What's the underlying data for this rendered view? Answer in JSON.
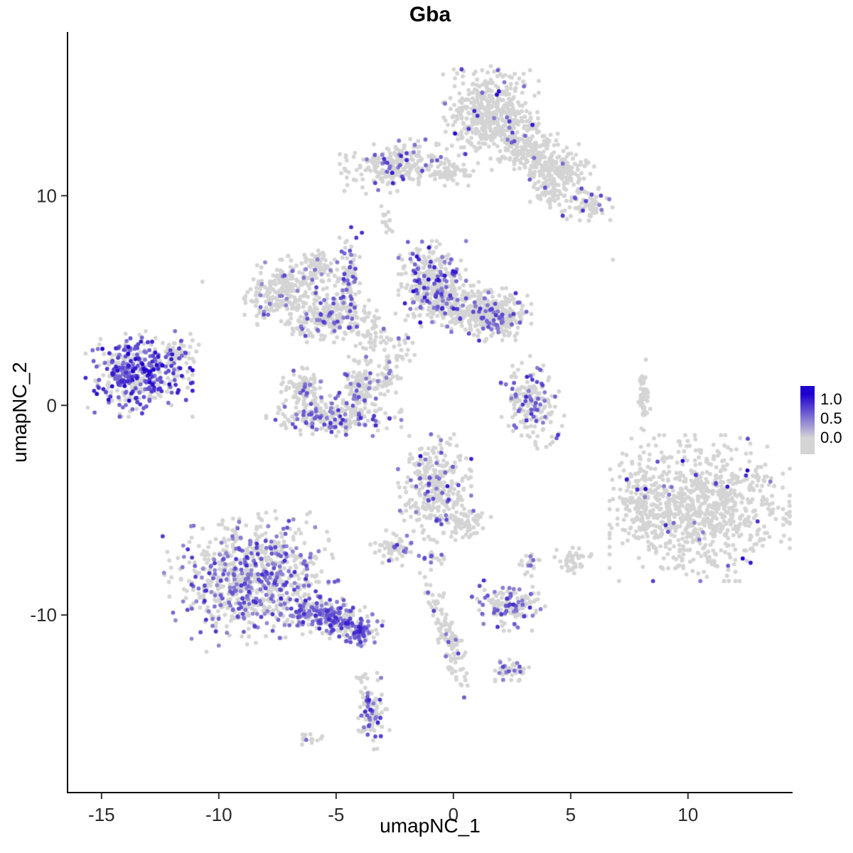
{
  "title": "Gba",
  "xlabel": "umapNC_1",
  "ylabel": "umapNC_2",
  "axes": {
    "xlim": [
      -16.45,
      14.46
    ],
    "ylim": [
      -18.47,
      17.81
    ],
    "x_ticks": [
      {
        "value": -15,
        "label": "-15"
      },
      {
        "value": -10,
        "label": "-10"
      },
      {
        "value": -5,
        "label": "-5"
      },
      {
        "value": 0,
        "label": "0"
      },
      {
        "value": 5,
        "label": "5"
      },
      {
        "value": 10,
        "label": "10"
      }
    ],
    "y_ticks": [
      {
        "value": 10,
        "label": "10"
      },
      {
        "value": 0,
        "label": "0"
      },
      {
        "value": -10,
        "label": "-10"
      }
    ]
  },
  "legend": {
    "labels": [
      "1.0",
      "0.5",
      "0.0"
    ],
    "low_color": "#d4d4d4",
    "high_color": "#1d00cf"
  },
  "chart_data": {
    "type": "scatter",
    "title": "Gba",
    "xlabel": "umapNC_1",
    "ylabel": "umapNC_2",
    "color_scale": {
      "low": "#d4d4d4",
      "high": "#1d00cf",
      "domain": [
        0,
        1
      ]
    },
    "point_radius": 2.9,
    "seed": 42,
    "clusters": [
      {
        "name": "top-main",
        "cx": 1.6,
        "cy": 13.9,
        "sx": 0.85,
        "sy": 0.95,
        "rot": 0,
        "n": 480,
        "frac": 0.04,
        "emin": 0.4,
        "emax": 1.0
      },
      {
        "name": "top-tail-1",
        "cx": 3.2,
        "cy": 12.0,
        "sx": 0.75,
        "sy": 0.6,
        "rot": -0.5,
        "n": 190,
        "frac": 0.02,
        "emin": 0.4,
        "emax": 0.7
      },
      {
        "name": "top-tail-2",
        "cx": 4.6,
        "cy": 11.3,
        "sx": 0.6,
        "sy": 0.55,
        "rot": 0,
        "n": 130,
        "frac": 0.02,
        "emin": 0.4,
        "emax": 0.7
      },
      {
        "name": "top-tail-3",
        "cx": 4.2,
        "cy": 10.2,
        "sx": 0.45,
        "sy": 0.4,
        "rot": 0,
        "n": 60,
        "frac": 0.03,
        "emin": 0.4,
        "emax": 0.7
      },
      {
        "name": "top-right-small",
        "cx": 5.7,
        "cy": 9.5,
        "sx": 0.45,
        "sy": 0.4,
        "rot": 0,
        "n": 70,
        "frac": 0.1,
        "emin": 0.4,
        "emax": 0.75
      },
      {
        "name": "upper-left",
        "cx": -2.4,
        "cy": 11.4,
        "sx": 1.0,
        "sy": 0.5,
        "rot": 0.15,
        "n": 230,
        "frac": 0.14,
        "emin": 0.4,
        "emax": 0.9
      },
      {
        "name": "upper-left-ext",
        "cx": -0.2,
        "cy": 11.2,
        "sx": 0.7,
        "sy": 0.3,
        "rot": 0,
        "n": 70,
        "frac": 0.03,
        "emin": 0.4,
        "emax": 0.7
      },
      {
        "name": "tiny-upper",
        "cx": -2.85,
        "cy": 8.8,
        "sx": 0.12,
        "sy": 0.3,
        "rot": 0,
        "n": 14,
        "frac": 0,
        "emin": 0,
        "emax": 0
      },
      {
        "name": "midleft-main",
        "cx": -7.1,
        "cy": 5.5,
        "sx": 0.85,
        "sy": 0.65,
        "rot": 0.25,
        "n": 270,
        "frac": 0.1,
        "emin": 0.35,
        "emax": 0.7
      },
      {
        "name": "midleft-arc",
        "cx": -5.2,
        "cy": 4.1,
        "sx": 0.75,
        "sy": 0.45,
        "rot": 0.3,
        "n": 200,
        "frac": 0.17,
        "emin": 0.4,
        "emax": 0.75
      },
      {
        "name": "midleft-strip",
        "cx": -4.5,
        "cy": 6.1,
        "sx": 0.25,
        "sy": 1.0,
        "rot": 0,
        "n": 90,
        "frac": 0.22,
        "emin": 0.4,
        "emax": 0.8
      },
      {
        "name": "midleft-small",
        "cx": -5.9,
        "cy": 6.8,
        "sx": 0.35,
        "sy": 0.3,
        "rot": 0,
        "n": 55,
        "frac": 0.05,
        "emin": 0.4,
        "emax": 0.6
      },
      {
        "name": "midleft-bridge",
        "cx": -3.6,
        "cy": 3.4,
        "sx": 0.3,
        "sy": 0.6,
        "rot": 0,
        "n": 45,
        "frac": 0.08,
        "emin": 0.4,
        "emax": 0.7
      },
      {
        "name": "center-top",
        "cx": -0.9,
        "cy": 5.8,
        "sx": 0.6,
        "sy": 0.85,
        "rot": 0,
        "n": 360,
        "frac": 0.3,
        "emin": 0.4,
        "emax": 0.95
      },
      {
        "name": "center-top-ext",
        "cx": 0.8,
        "cy": 4.6,
        "sx": 0.9,
        "sy": 0.55,
        "rot": -0.25,
        "n": 280,
        "frac": 0.1,
        "emin": 0.4,
        "emax": 0.8
      },
      {
        "name": "center-right-blob",
        "cx": 2.0,
        "cy": 4.25,
        "sx": 0.55,
        "sy": 0.5,
        "rot": 0,
        "n": 170,
        "frac": 0.2,
        "emin": 0.4,
        "emax": 0.8
      },
      {
        "name": "farleft",
        "cx": -13.4,
        "cy": 1.5,
        "sx": 0.95,
        "sy": 0.85,
        "rot": 0,
        "n": 430,
        "frac": 0.55,
        "emin": 0.45,
        "emax": 1.0
      },
      {
        "name": "farleft-arm",
        "cx": -11.6,
        "cy": 2.5,
        "sx": 0.35,
        "sy": 0.35,
        "rot": 0.6,
        "n": 50,
        "frac": 0.25,
        "emin": 0.4,
        "emax": 0.8
      },
      {
        "name": "cup-bottom",
        "cx": -5.1,
        "cy": -0.5,
        "sx": 1.2,
        "sy": 0.4,
        "rot": 0,
        "n": 240,
        "frac": 0.28,
        "emin": 0.4,
        "emax": 0.85
      },
      {
        "name": "cup-left",
        "cx": -6.45,
        "cy": 0.85,
        "sx": 0.4,
        "sy": 0.5,
        "rot": 0,
        "n": 110,
        "frac": 0.12,
        "emin": 0.4,
        "emax": 0.75
      },
      {
        "name": "cup-right",
        "cx": -3.9,
        "cy": 1.0,
        "sx": 0.4,
        "sy": 0.55,
        "rot": 0,
        "n": 120,
        "frac": 0.12,
        "emin": 0.4,
        "emax": 0.75
      },
      {
        "name": "center-strip",
        "cx": -2.8,
        "cy": 1.4,
        "sx": 0.2,
        "sy": 0.5,
        "rot": 0,
        "n": 40,
        "frac": 0.1,
        "emin": 0.4,
        "emax": 0.7
      },
      {
        "name": "center-bridge",
        "cx": -2.5,
        "cy": 2.7,
        "sx": 0.4,
        "sy": 0.7,
        "rot": 0,
        "n": 40,
        "frac": 0.08,
        "emin": 0.4,
        "emax": 0.7
      },
      {
        "name": "right-center",
        "cx": 3.25,
        "cy": 0.2,
        "sx": 0.55,
        "sy": 0.95,
        "rot": 0.2,
        "n": 190,
        "frac": 0.2,
        "emin": 0.4,
        "emax": 0.85
      },
      {
        "name": "right-thin-strip",
        "cx": 8.1,
        "cy": 0.5,
        "sx": 0.13,
        "sy": 0.7,
        "rot": 0,
        "n": 45,
        "frac": 0.02,
        "emin": 0.4,
        "emax": 0.6
      },
      {
        "name": "center-bottom",
        "cx": -0.8,
        "cy": -3.9,
        "sx": 0.65,
        "sy": 1.05,
        "rot": 0,
        "n": 310,
        "frac": 0.16,
        "emin": 0.4,
        "emax": 1.0
      },
      {
        "name": "center-bottom-foot",
        "cx": 0.4,
        "cy": -5.6,
        "sx": 0.5,
        "sy": 0.4,
        "rot": 0,
        "n": 70,
        "frac": 0.06,
        "emin": 0.4,
        "emax": 0.7
      },
      {
        "name": "bigright",
        "cx": 10.5,
        "cy": -4.9,
        "sx": 1.6,
        "sy": 1.45,
        "rot": 0,
        "n": 880,
        "frac": 0.03,
        "emin": 0.4,
        "emax": 1.0
      },
      {
        "name": "bigright-arm",
        "cx": 7.95,
        "cy": -4.4,
        "sx": 0.5,
        "sy": 0.9,
        "rot": 0,
        "n": 130,
        "frac": 0.02,
        "emin": 0.4,
        "emax": 0.7
      },
      {
        "name": "small-left-of-center",
        "cx": -2.55,
        "cy": -6.8,
        "sx": 0.45,
        "sy": 0.35,
        "rot": 0,
        "n": 65,
        "frac": 0.18,
        "emin": 0.4,
        "emax": 0.8
      },
      {
        "name": "tiny-pair",
        "cx": -0.85,
        "cy": -7.2,
        "sx": 0.2,
        "sy": 0.18,
        "rot": 0,
        "n": 16,
        "frac": 0.25,
        "emin": 0.4,
        "emax": 0.8
      },
      {
        "name": "tiny-right",
        "cx": 3.25,
        "cy": -7.55,
        "sx": 0.18,
        "sy": 0.28,
        "rot": 0,
        "n": 22,
        "frac": 0.12,
        "emin": 0.4,
        "emax": 0.7
      },
      {
        "name": "small-gray-right",
        "cx": 5.05,
        "cy": -7.35,
        "sx": 0.35,
        "sy": 0.3,
        "rot": 0,
        "n": 45,
        "frac": 0.02,
        "emin": 0.4,
        "emax": 0.6
      },
      {
        "name": "bottomleft-main",
        "cx": -8.6,
        "cy": -8.3,
        "sx": 1.5,
        "sy": 1.25,
        "rot": 0.2,
        "n": 830,
        "frac": 0.3,
        "emin": 0.35,
        "emax": 0.8
      },
      {
        "name": "bottomleft-tail",
        "cx": -5.25,
        "cy": -10.1,
        "sx": 0.95,
        "sy": 0.4,
        "rot": -0.35,
        "n": 260,
        "frac": 0.5,
        "emin": 0.4,
        "emax": 0.85
      },
      {
        "name": "bottomleft-tip",
        "cx": -4.05,
        "cy": -10.7,
        "sx": 0.35,
        "sy": 0.28,
        "rot": -0.3,
        "n": 70,
        "frac": 0.55,
        "emin": 0.4,
        "emax": 0.85
      },
      {
        "name": "bottom-center-cluster",
        "cx": 2.35,
        "cy": -9.55,
        "sx": 0.65,
        "sy": 0.5,
        "rot": 0,
        "n": 150,
        "frac": 0.28,
        "emin": 0.4,
        "emax": 0.8
      },
      {
        "name": "bottom-strip",
        "cx": -0.3,
        "cy": -10.9,
        "sx": 0.22,
        "sy": 1.3,
        "rot": 0.3,
        "n": 120,
        "frac": 0.06,
        "emin": 0.4,
        "emax": 0.7
      },
      {
        "name": "bottom-small",
        "cx": 2.5,
        "cy": -12.6,
        "sx": 0.3,
        "sy": 0.28,
        "rot": 0,
        "n": 40,
        "frac": 0.18,
        "emin": 0.4,
        "emax": 0.75
      },
      {
        "name": "bottom-dot",
        "cx": -3.9,
        "cy": -12.95,
        "sx": 0.12,
        "sy": 0.12,
        "rot": 0,
        "n": 7,
        "frac": 0,
        "emin": 0,
        "emax": 0
      },
      {
        "name": "bottom-vertical",
        "cx": -3.5,
        "cy": -14.6,
        "sx": 0.28,
        "sy": 0.75,
        "rot": 0.15,
        "n": 105,
        "frac": 0.28,
        "emin": 0.4,
        "emax": 0.85
      },
      {
        "name": "bottom-tiny",
        "cx": -6.2,
        "cy": -15.9,
        "sx": 0.3,
        "sy": 0.13,
        "rot": 0,
        "n": 16,
        "frac": 0.05,
        "emin": 0.4,
        "emax": 0.6
      }
    ],
    "singletons": [
      {
        "x": -10.7,
        "y": 5.9,
        "v": 0
      },
      {
        "x": 6.8,
        "y": 6.95,
        "v": 0
      },
      {
        "x": -2.9,
        "y": 9.1,
        "v": 0
      }
    ]
  }
}
